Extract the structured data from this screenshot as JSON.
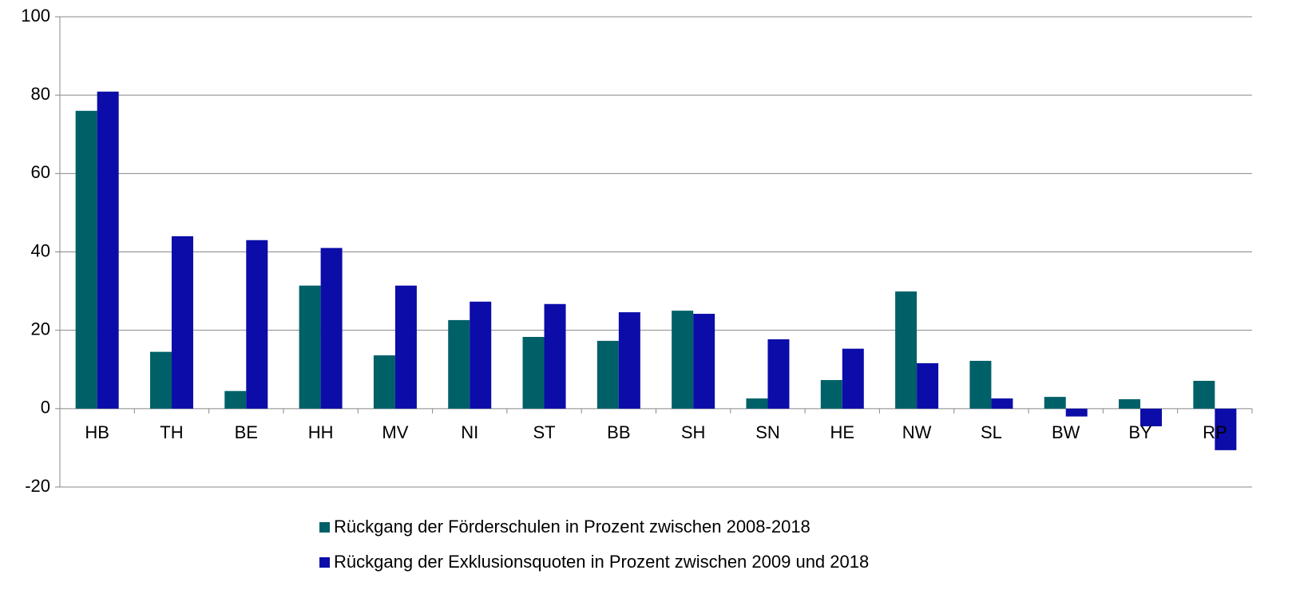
{
  "chart_data": {
    "type": "bar",
    "categories": [
      "HB",
      "TH",
      "BE",
      "HH",
      "MV",
      "NI",
      "ST",
      "BB",
      "SH",
      "SN",
      "HE",
      "NW",
      "SL",
      "BW",
      "BY",
      "RP"
    ],
    "series": [
      {
        "name": "Rückgang der Förderschulen in Prozent zwischen 2008-2018",
        "color": "#006068",
        "values": [
          76,
          14.5,
          4.5,
          31.4,
          13.6,
          22.6,
          18.3,
          17.3,
          25,
          2.6,
          7.3,
          29.9,
          12.2,
          3,
          2.4,
          7.1
        ]
      },
      {
        "name": "Rückgang der Exklusionsquoten in Prozent zwischen 2009 und 2018",
        "color": "#0c0ca8",
        "values": [
          80.9,
          44,
          43,
          41,
          31.4,
          27.3,
          26.7,
          24.6,
          24.2,
          17.7,
          15.3,
          11.6,
          2.6,
          -2,
          -4.5,
          -10.6
        ]
      }
    ],
    "ylim": [
      -20,
      100
    ],
    "yticks": [
      -20,
      0,
      20,
      40,
      60,
      80,
      100
    ],
    "grid": true,
    "legend": "bottom"
  }
}
